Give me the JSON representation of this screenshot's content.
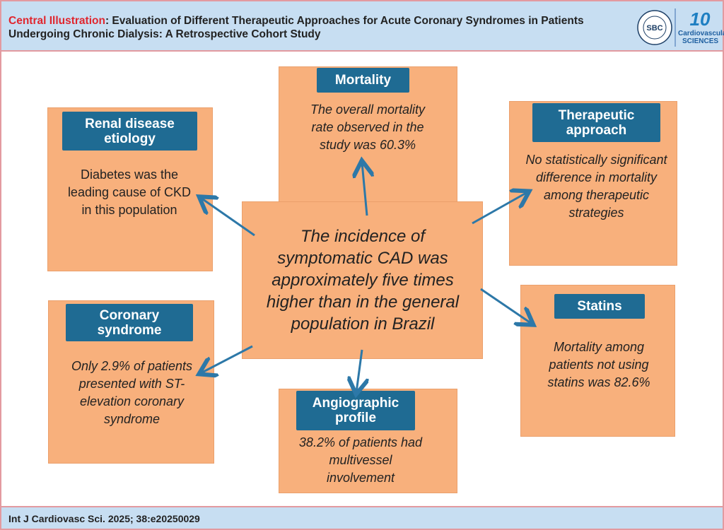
{
  "header": {
    "title_prefix": "Central Illustration",
    "title_rest": ": Evaluation of Different Therapeutic Approaches for Acute Coronary Syndromes in Patients Undergoing Chronic Dialysis: A Retrospective Cohort Study",
    "logo_sbc": "SBC",
    "logo_ijcs": "Cardiovascular SCIENCES"
  },
  "center": {
    "text": "The incidence of symptomatic CAD was approximately five times higher than in the general population in Brazil"
  },
  "boxes": {
    "renal": {
      "label": "Renal disease etiology",
      "text": "Diabetes was the leading cause of CKD in this population"
    },
    "mortality": {
      "label": "Mortality",
      "text": "The overall mortality rate observed in the study was 60.3%"
    },
    "therapeutic": {
      "label": "Therapeutic approach",
      "text": "No statistically significant difference in mortality among therapeutic strategies"
    },
    "coronary": {
      "label": "Coronary syndrome",
      "text": "Only 2.9% of patients presented with ST-elevation coronary syndrome"
    },
    "angiographic": {
      "label": "Angiographic profile",
      "text": "38.2% of patients had multivessel involvement"
    },
    "statins": {
      "label": "Statins",
      "text": "Mortality among patients not using statins was 82.6%"
    }
  },
  "footer": {
    "citation": "Int J Cardiovasc Sci. 2025; 38:e20250029"
  },
  "colors": {
    "box": "#f8b07c",
    "label": "#1f6b93",
    "arrow": "#2d78a8",
    "title_accent": "#e0262e",
    "header_bg": "#c7def2"
  }
}
